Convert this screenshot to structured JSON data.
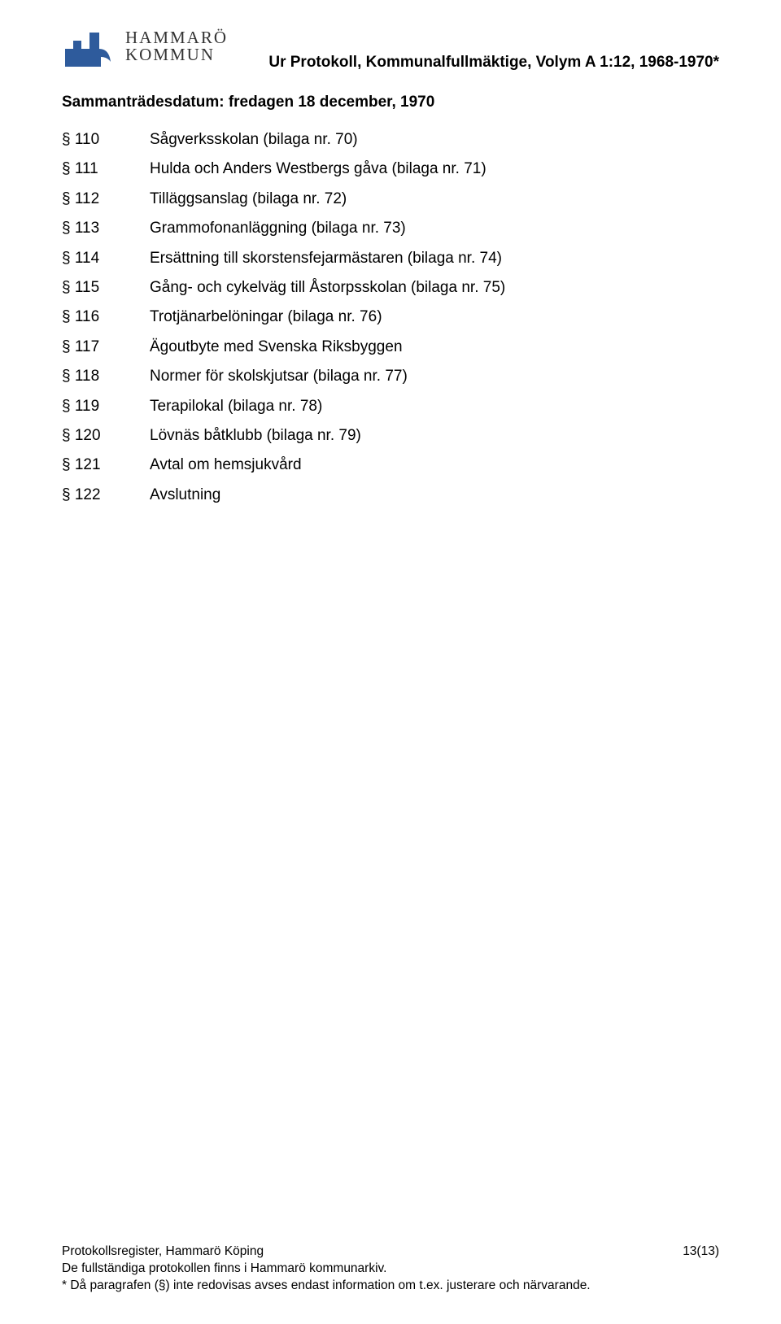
{
  "logo": {
    "line1": "HAMMARÖ",
    "line2": "KOMMUN",
    "mark_color": "#2e5b9c"
  },
  "doc_title": "Ur Protokoll, Kommunalfullmäktige, Volym A 1:12, 1968-1970*",
  "meeting_date": "Sammanträdesdatum: fredagen 18 december, 1970",
  "items": [
    {
      "ref": "§ 110",
      "text": "Sågverksskolan (bilaga nr. 70)"
    },
    {
      "ref": "§ 111",
      "text": "Hulda och Anders Westbergs gåva (bilaga nr. 71)"
    },
    {
      "ref": "§ 112",
      "text": "Tilläggsanslag (bilaga nr. 72)"
    },
    {
      "ref": "§ 113",
      "text": "Grammofonanläggning (bilaga nr. 73)"
    },
    {
      "ref": "§ 114",
      "text": "Ersättning till skorstensfejarmästaren (bilaga nr. 74)"
    },
    {
      "ref": "§ 115",
      "text": "Gång- och cykelväg till Åstorpsskolan (bilaga nr. 75)"
    },
    {
      "ref": "§ 116",
      "text": "Trotjänarbelöningar (bilaga nr. 76)"
    },
    {
      "ref": "§ 117",
      "text": "Ägoutbyte med Svenska Riksbyggen"
    },
    {
      "ref": "§ 118",
      "text": "Normer för skolskjutsar (bilaga nr. 77)"
    },
    {
      "ref": "§ 119",
      "text": "Terapilokal (bilaga nr. 78)"
    },
    {
      "ref": "§ 120",
      "text": "Lövnäs båtklubb (bilaga nr. 79)"
    },
    {
      "ref": "§ 121",
      "text": "Avtal om hemsjukvård"
    },
    {
      "ref": "§ 122",
      "text": "Avslutning"
    }
  ],
  "footer": {
    "line1_left": "Protokollsregister, Hammarö Köping",
    "line1_right": "13(13)",
    "line2": "De fullständiga protokollen finns i Hammarö kommunarkiv.",
    "line3": "* Då paragrafen (§) inte redovisas avses endast information om t.ex. justerare och närvarande."
  }
}
